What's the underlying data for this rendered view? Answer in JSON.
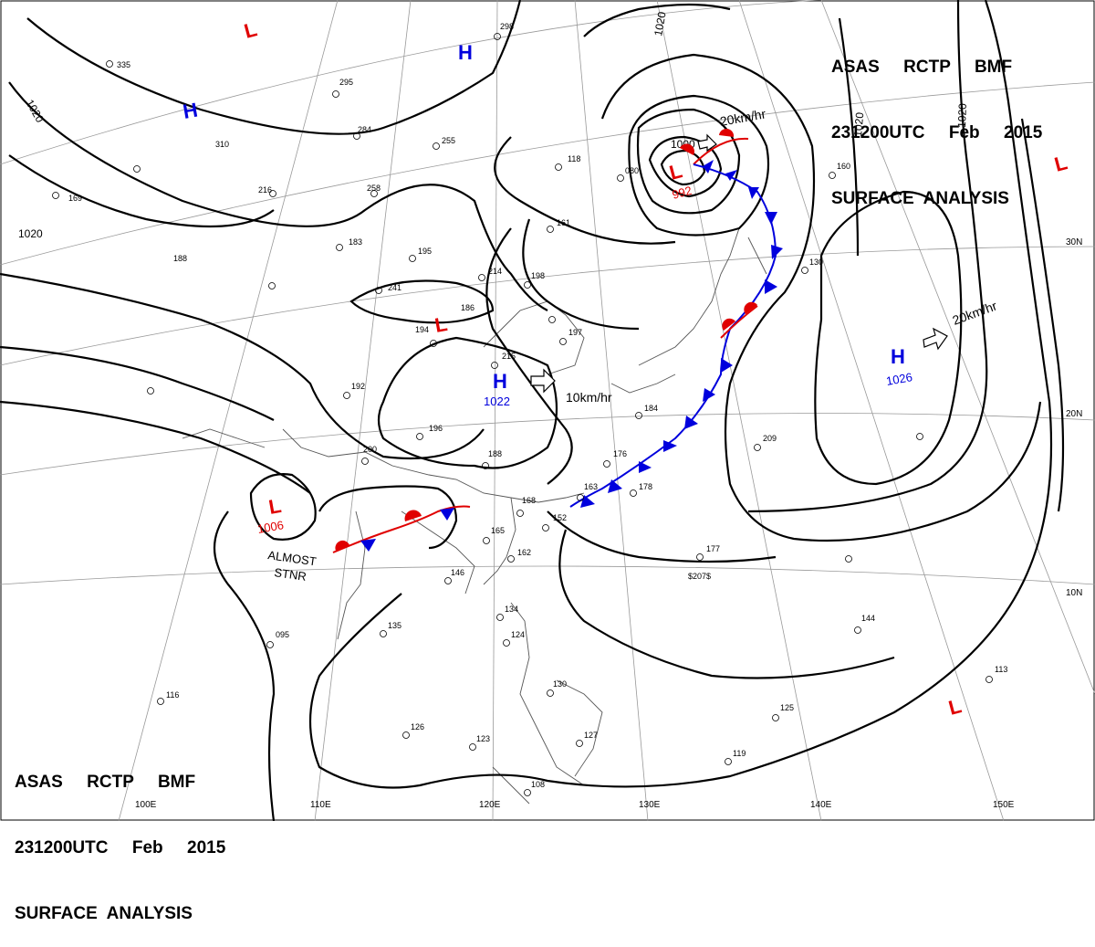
{
  "header": {
    "line1": "ASAS     RCTP     BMF",
    "line2": "231200UTC     Feb     2015",
    "line3": "SURFACE  ANALYSIS"
  },
  "pressure_centers": [
    {
      "type": "L",
      "value": "",
      "color": "#e00000"
    },
    {
      "type": "H",
      "value": "",
      "color": "#0000dd"
    },
    {
      "type": "H",
      "value": "",
      "color": "#0000dd"
    },
    {
      "type": "L",
      "value": "992",
      "color": "#e00000"
    },
    {
      "type": "L",
      "value": "",
      "color": "#e00000"
    },
    {
      "type": "L",
      "value": "",
      "color": "#e00000"
    },
    {
      "type": "H",
      "value": "1022",
      "color": "#0000dd"
    },
    {
      "type": "H",
      "value": "1026",
      "color": "#0000dd"
    },
    {
      "type": "L",
      "value": "1006",
      "color": "#e00000"
    },
    {
      "type": "L",
      "value": "",
      "color": "#e00000"
    }
  ],
  "motion_arrows": [
    {
      "label": "20km/hr"
    },
    {
      "label": "10km/hr"
    },
    {
      "label": "20km/hr"
    }
  ],
  "annotations": {
    "stationary_note_1": "ALMOST",
    "stationary_note_2": "STNR"
  },
  "isobar_labels": [
    "1020",
    "1020",
    "1020",
    "1020",
    "1020",
    "1000"
  ],
  "latitude_labels": [
    "30N",
    "20N",
    "10N"
  ],
  "longitude_labels": [
    "100E",
    "110E",
    "120E",
    "130E",
    "140E",
    "150E"
  ],
  "station_samples": [
    "298",
    "335",
    "295",
    "284",
    "255",
    "258",
    "216",
    "310",
    "169",
    "188",
    "183",
    "195",
    "241",
    "214",
    "198",
    "186",
    "194",
    "192",
    "215",
    "196",
    "200",
    "188",
    "176",
    "178",
    "163",
    "168",
    "152",
    "165",
    "162",
    "146",
    "135",
    "095",
    "116",
    "126",
    "123",
    "108",
    "134",
    "124",
    "130",
    "127",
    "119",
    "125",
    "144",
    "113",
    "209",
    "177",
    "130",
    "160",
    "118",
    "080",
    "161",
    "184",
    "197",
    "$207$"
  ],
  "colors": {
    "low": "#e00000",
    "high": "#0000dd",
    "warm_front": "#e00000",
    "cold_front": "#0000dd",
    "isobar": "#000000",
    "grid": "#888888",
    "coast": "#555555"
  }
}
